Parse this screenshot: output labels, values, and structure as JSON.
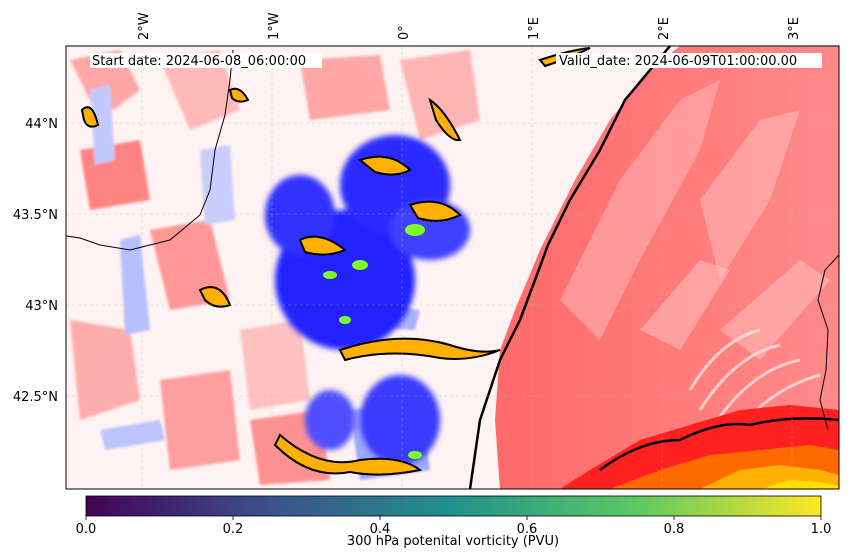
{
  "header": {
    "start_date": "Start date: 2024-06-08_06:00:00",
    "valid_date": "Valid_date: 2024-06-09T01:00:00.00"
  },
  "axes": {
    "lon_ticks": [
      "2°W",
      "1°W",
      "0°",
      "1°E",
      "2°E",
      "3°E"
    ],
    "lat_ticks": [
      "44°N",
      "43.5°N",
      "43°N",
      "42.5°N"
    ]
  },
  "colorbar": {
    "label": "300 hPa potenital vorticity (PVU)",
    "ticks": [
      "0.0",
      "0.2",
      "0.4",
      "0.6",
      "0.8",
      "1.0"
    ],
    "range": [
      0.0,
      1.0
    ],
    "colormap": "viridis",
    "colormap_stops": [
      "#440154",
      "#3b528b",
      "#21918c",
      "#5ec962",
      "#fde725"
    ]
  },
  "chart_data": {
    "type": "map",
    "variable": "300 hPa potential vorticity",
    "units": "PVU",
    "field_colors": {
      "negative": "#0000ff",
      "near_zero": "#ffffff",
      "positive": "#ff0000",
      "high": "#ffa500",
      "highest": "#ffff00",
      "contour": "#000000"
    },
    "lon_range": [
      -2.6,
      3.3
    ],
    "lat_range": [
      42.0,
      44.45
    ],
    "grid": true
  }
}
